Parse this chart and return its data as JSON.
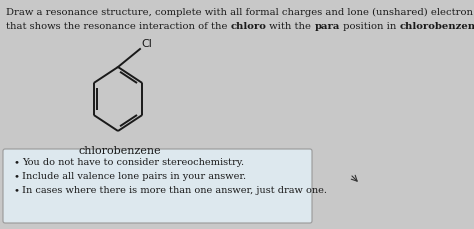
{
  "title_line1": "Draw a resonance structure, complete with all formal charges and lone (unshared) electron pairs,",
  "title_line2_parts": [
    [
      "that shows the resonance interaction of the ",
      false
    ],
    [
      "chloro",
      true
    ],
    [
      " with the ",
      false
    ],
    [
      "para",
      true
    ],
    [
      " position in ",
      false
    ],
    [
      "chlorobenzene",
      true
    ],
    [
      ".",
      false
    ]
  ],
  "molecule_label": "chlorobenzene",
  "bullet_points": [
    "You do not have to consider stereochemistry.",
    "Include all valence lone pairs in your answer.",
    "In cases where there is more than one answer, just draw one."
  ],
  "bg_color": "#c8c8c8",
  "box_facecolor": "#dde8ee",
  "box_edgecolor": "#999999",
  "text_color": "#1a1a1a",
  "bond_color": "#1a1a1a",
  "fig_width": 4.74,
  "fig_height": 2.3,
  "dpi": 100
}
